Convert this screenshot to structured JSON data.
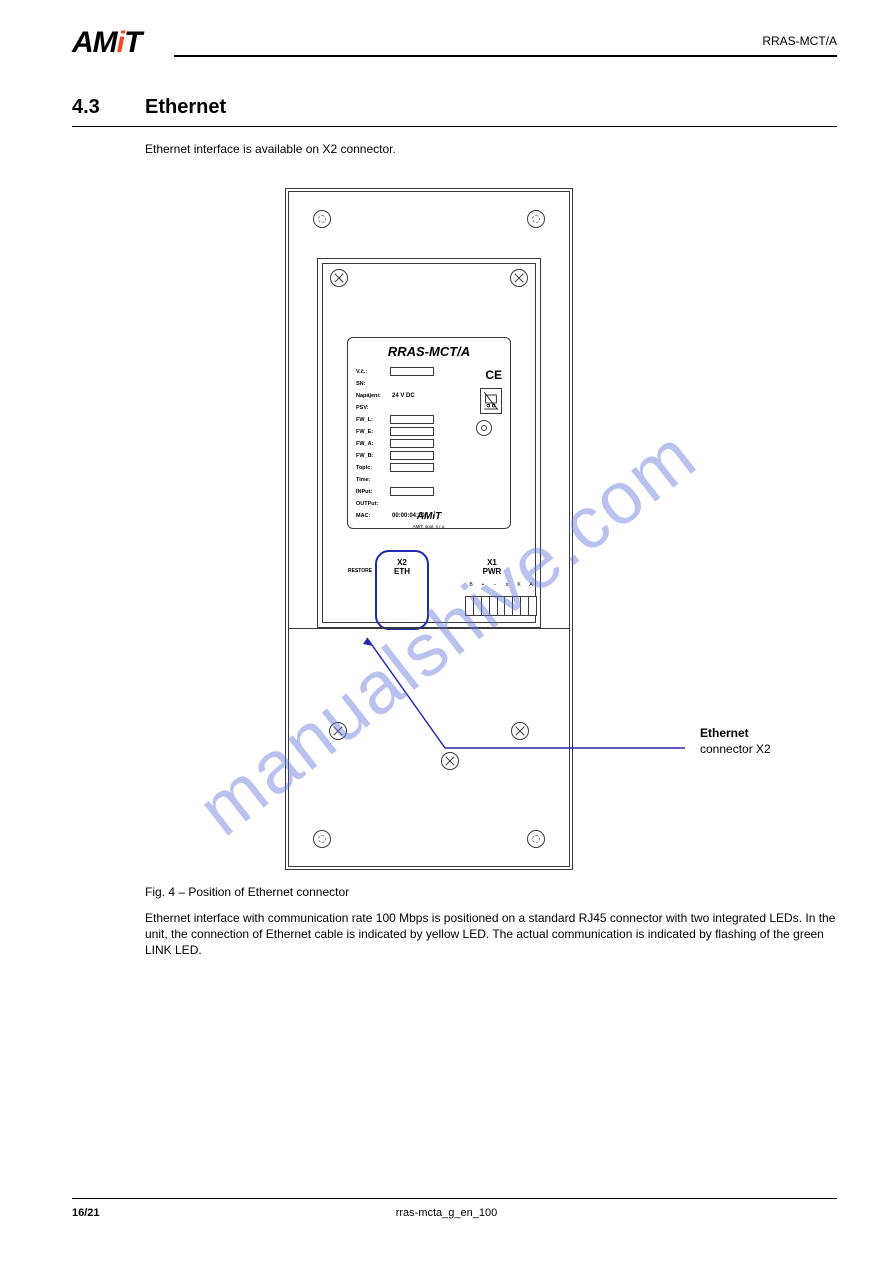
{
  "header": {
    "logo_text": "AMiT",
    "right_text": "RRAS-MCT/A"
  },
  "section": {
    "number": "4.3",
    "title": "Ethernet",
    "intro": "Ethernet interface is available on X2 connector."
  },
  "diagram": {
    "device_title": "RRAS-MCT/A",
    "label_rows": [
      {
        "k": "V.č.:",
        "box": "w2"
      },
      {
        "k": "SN:",
        "box": null
      },
      {
        "k": "Napájení:",
        "txt": "24 V DC"
      },
      {
        "k": "PSV:",
        "box": null
      },
      {
        "k": "FW_L:",
        "box": "w2"
      },
      {
        "k": "FW_E:",
        "box": "w2"
      },
      {
        "k": "FW_A:",
        "box": "w2"
      },
      {
        "k": "FW_B:",
        "box": "w2"
      },
      {
        "k": "Topic:",
        "box": "w2"
      },
      {
        "k": "Time:",
        "box": null
      },
      {
        "k": "INPut:",
        "box": "w2"
      },
      {
        "k": "OUTPut:",
        "box": null
      },
      {
        "k": "MAC:",
        "txt": "00:00:04:10:"
      }
    ],
    "label_logo": "AMiT",
    "label_logo_sub": "AMiT, spol. s r.o.",
    "x2_line1": "X2",
    "x2_line2": "ETH",
    "x1_line1": "X1",
    "x1_line2": "PWR",
    "restore": "RESTORE",
    "pwr_pins": [
      "B",
      "+",
      "−",
      "s",
      "K",
      "A"
    ]
  },
  "callout": {
    "title": "Ethernet",
    "sub": "connector X2"
  },
  "figure_caption": "Fig. 4 – Position of Ethernet connector",
  "body": "Ethernet interface with communication rate 100 Mbps is positioned on a standard RJ45 connector with two integrated LEDs. In the unit, the connection of Ethernet cable is indicated by yellow LED. The actual communication is indicated by flashing of the green LINK LED.",
  "footer": {
    "left": "16/21",
    "center": "rras-mcta_g_en_100",
    "right": ""
  },
  "watermark": "manualshive.com",
  "colors": {
    "ink": "#000000",
    "accent_blue": "#2028b0",
    "logo_dot": "#f04a1a",
    "watermark": "rgba(100,120,220,0.45)",
    "stroke": "#3a3a3a"
  }
}
